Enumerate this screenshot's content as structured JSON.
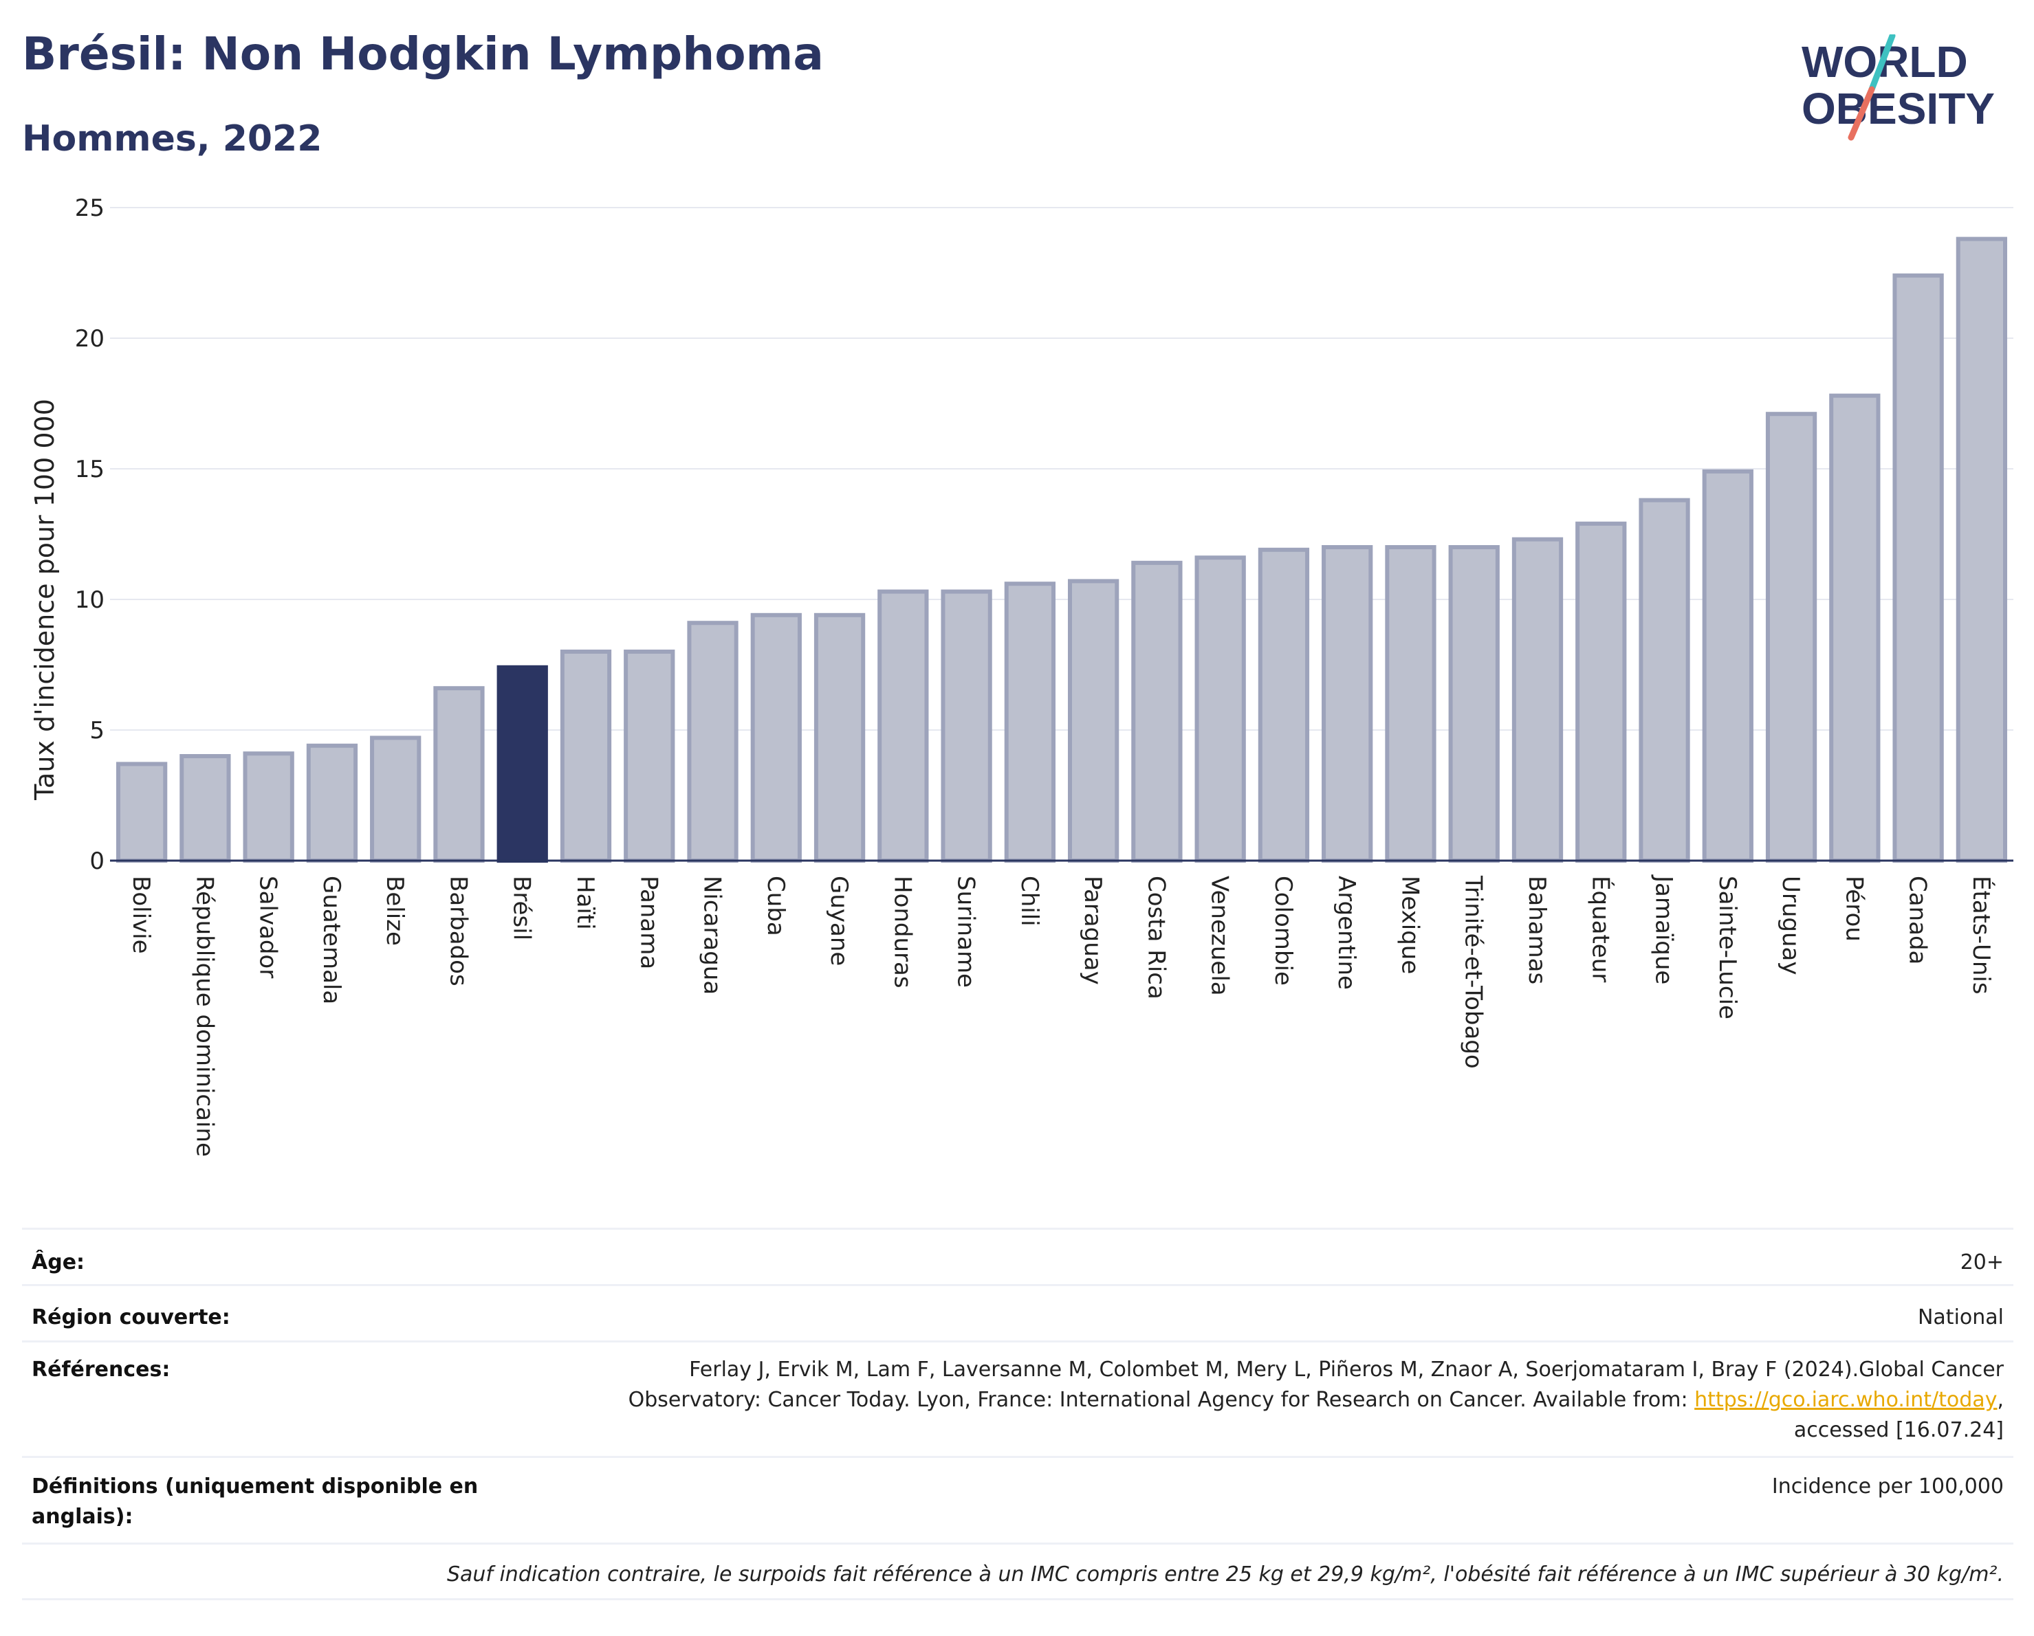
{
  "header": {
    "title": "Brésil: Non Hodgkin Lymphoma",
    "subtitle": "Hommes, 2022",
    "logo_line1": "WORLD",
    "logo_line2": "OBESITY"
  },
  "colors": {
    "highlight": "#2b3562",
    "bar": "#bcc0ce",
    "bar_border": "#9da3bb",
    "logo_navy": "#2b3562",
    "logo_teal": "#3ec1c1",
    "logo_coral": "#e8705f",
    "link": "#e8a800"
  },
  "chart_data": {
    "type": "bar",
    "ylabel": "Taux d'incidence pour 100 000",
    "ylim": [
      0,
      25
    ],
    "yticks": [
      0,
      5,
      10,
      15,
      20,
      25
    ],
    "highlight": "Brésil",
    "categories": [
      "Bolivie",
      "République dominicaine",
      "Salvador",
      "Guatemala",
      "Belize",
      "Barbados",
      "Brésil",
      "Haïti",
      "Panama",
      "Nicaragua",
      "Cuba",
      "Guyane",
      "Honduras",
      "Suriname",
      "Chili",
      "Paraguay",
      "Costa Rica",
      "Venezuela",
      "Colombie",
      "Argentine",
      "Mexique",
      "Trinité-et-Tobago",
      "Bahamas",
      "Équateur",
      "Jamaïque",
      "Sainte-Lucie",
      "Uruguay",
      "Pérou",
      "Canada",
      "États-Unis"
    ],
    "values": [
      3.7,
      4.0,
      4.1,
      4.4,
      4.7,
      6.6,
      7.4,
      8.0,
      8.0,
      9.1,
      9.4,
      9.4,
      10.3,
      10.3,
      10.6,
      10.7,
      11.4,
      11.6,
      11.9,
      12.0,
      12.0,
      12.0,
      12.3,
      12.9,
      13.8,
      14.9,
      17.1,
      17.8,
      22.4,
      23.8
    ],
    "grid": true
  },
  "info": {
    "age_label": "Âge:",
    "age_value": "20+",
    "region_label": "Région couverte:",
    "region_value": "National",
    "refs_label": "Références:",
    "refs_text_1": "Ferlay J, Ervik M, Lam F, Laversanne M, Colombet M, Mery L, Piñeros M, Znaor A, Soerjomataram I, Bray F (2024).Global Cancer Observatory: Cancer Today. Lyon, France: International Agency for Research on Cancer. Available from: ",
    "refs_link": "https://gco.iarc.who.int/today",
    "refs_text_2": ", accessed [16.07.24]",
    "defs_label": "Définitions (uniquement disponible en anglais):",
    "defs_value": "Incidence per 100,000",
    "note": "Sauf indication contraire, le surpoids fait référence à un IMC compris entre 25 kg et 29,9 kg/m², l'obésité fait référence à un IMC supérieur à 30 kg/m²."
  }
}
